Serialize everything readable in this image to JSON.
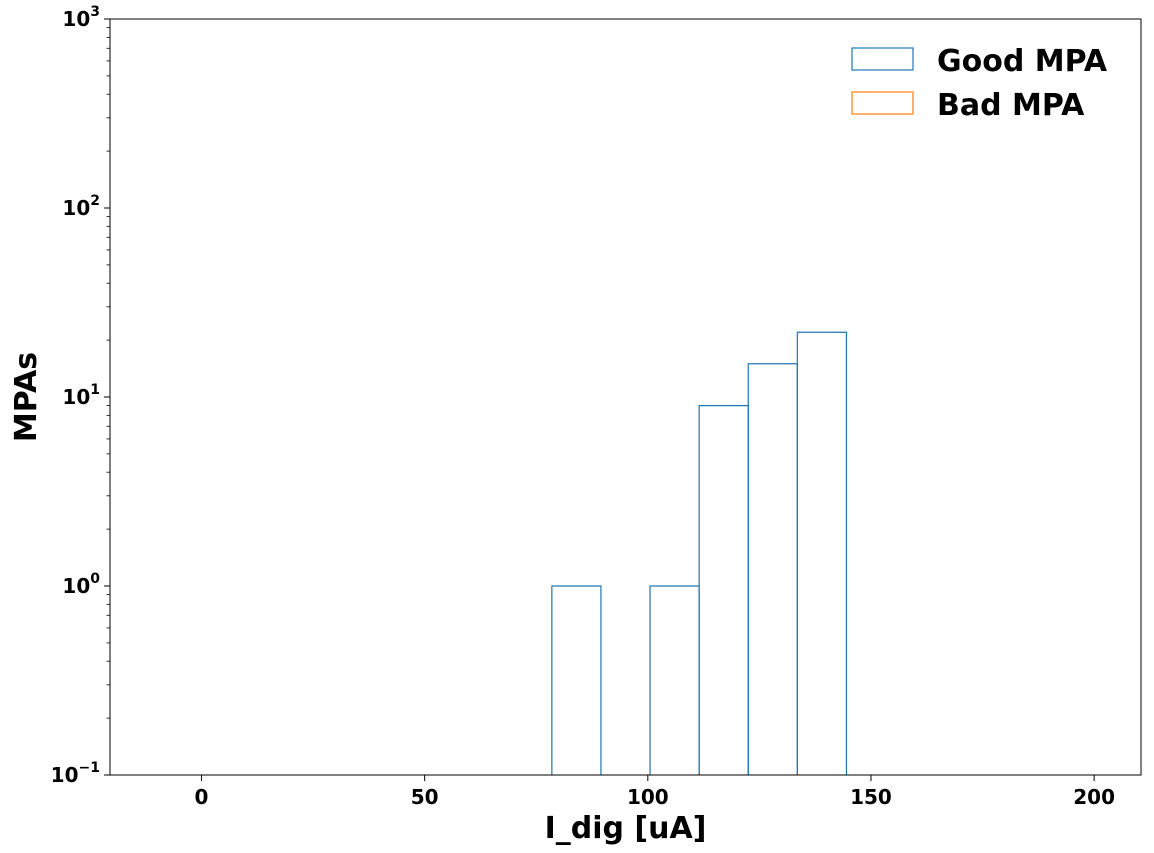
{
  "chart_data": {
    "type": "histogram",
    "title": "",
    "xlabel": "I_dig [uA]",
    "ylabel": "MPAs",
    "xlim": [
      -20.5,
      210.5
    ],
    "ylim": [
      0.1,
      1000
    ],
    "yscale": "log",
    "grid": false,
    "legend_position": "top-right",
    "x_ticks": [
      0,
      50,
      100,
      150,
      200
    ],
    "y_ticks": [
      {
        "value": 0.1,
        "base": "10",
        "exp": "−1"
      },
      {
        "value": 1,
        "base": "10",
        "exp": "0"
      },
      {
        "value": 10,
        "base": "10",
        "exp": "1"
      },
      {
        "value": 100,
        "base": "10",
        "exp": "2"
      },
      {
        "value": 1000,
        "base": "10",
        "exp": "3"
      }
    ],
    "series": [
      {
        "name": "Good MPA",
        "color": "#1f77b4",
        "bins": [
          {
            "x0": 78.5,
            "x1": 89.5,
            "count": 1
          },
          {
            "x0": 89.5,
            "x1": 100.5,
            "count": 0
          },
          {
            "x0": 100.5,
            "x1": 111.5,
            "count": 1
          },
          {
            "x0": 111.5,
            "x1": 122.5,
            "count": 9
          },
          {
            "x0": 122.5,
            "x1": 133.5,
            "count": 15
          },
          {
            "x0": 133.5,
            "x1": 144.5,
            "count": 22
          }
        ]
      },
      {
        "name": "Bad MPA",
        "color": "#ff7f0e",
        "bins": []
      }
    ]
  }
}
